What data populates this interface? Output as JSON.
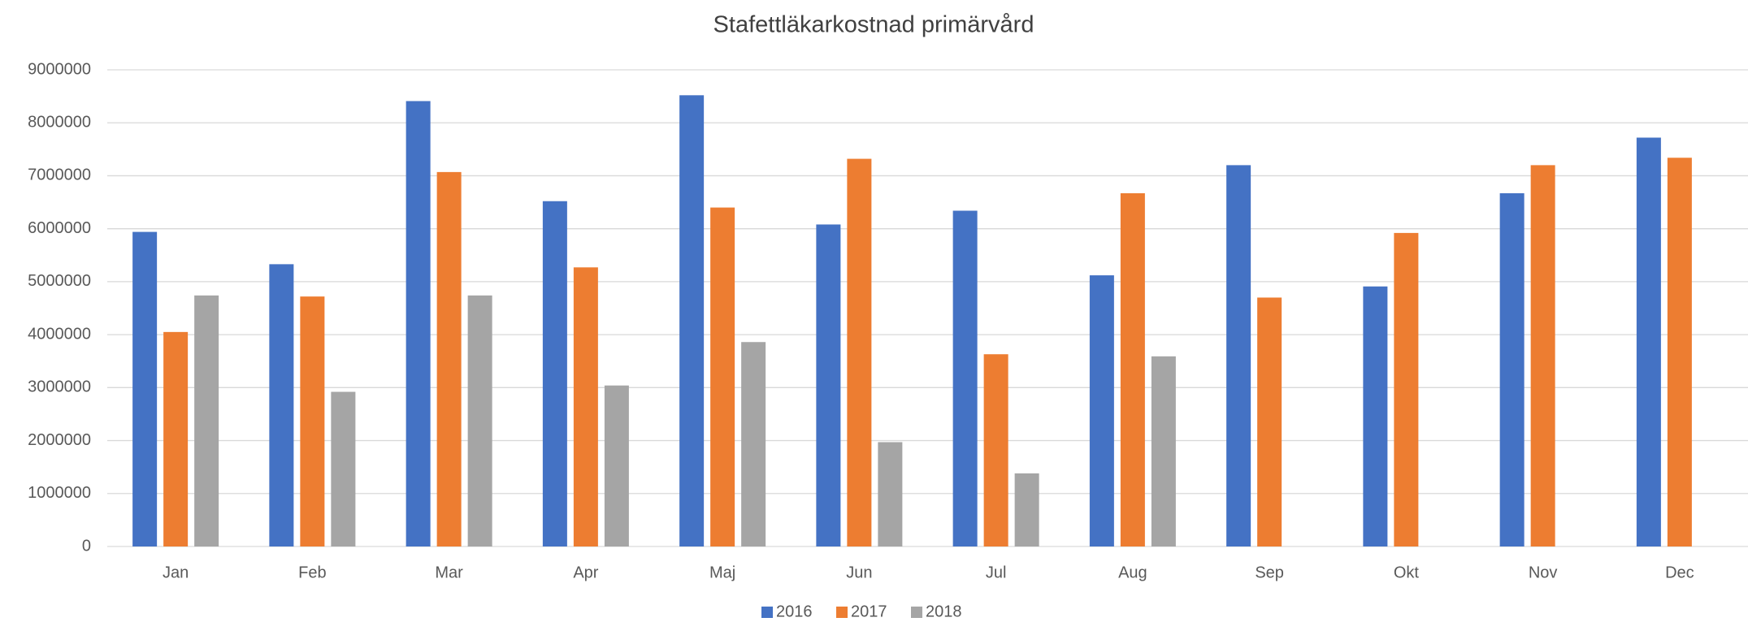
{
  "chart_data": {
    "type": "bar",
    "title": "Stafettläkarkostnad primärvård",
    "categories": [
      "Jan",
      "Feb",
      "Mar",
      "Apr",
      "Maj",
      "Jun",
      "Jul",
      "Aug",
      "Sep",
      "Okt",
      "Nov",
      "Dec"
    ],
    "series": [
      {
        "name": "2016",
        "color": "#4472c4",
        "values": [
          5940000,
          5330000,
          8410000,
          6520000,
          8520000,
          6080000,
          6340000,
          5120000,
          7200000,
          4910000,
          6670000,
          7720000
        ]
      },
      {
        "name": "2017",
        "color": "#ed7d31",
        "values": [
          4050000,
          4720000,
          7070000,
          5270000,
          6400000,
          7320000,
          3630000,
          6670000,
          4700000,
          5920000,
          7200000,
          7340000
        ]
      },
      {
        "name": "2018",
        "color": "#a5a5a5",
        "values": [
          4740000,
          2920000,
          4740000,
          3040000,
          3860000,
          1970000,
          1380000,
          3590000,
          null,
          null,
          null,
          null
        ]
      }
    ],
    "ylim": [
      0,
      9000000
    ],
    "yticks": [
      0,
      1000000,
      2000000,
      3000000,
      4000000,
      5000000,
      6000000,
      7000000,
      8000000,
      9000000
    ],
    "grid": true,
    "legend": "bottom"
  }
}
